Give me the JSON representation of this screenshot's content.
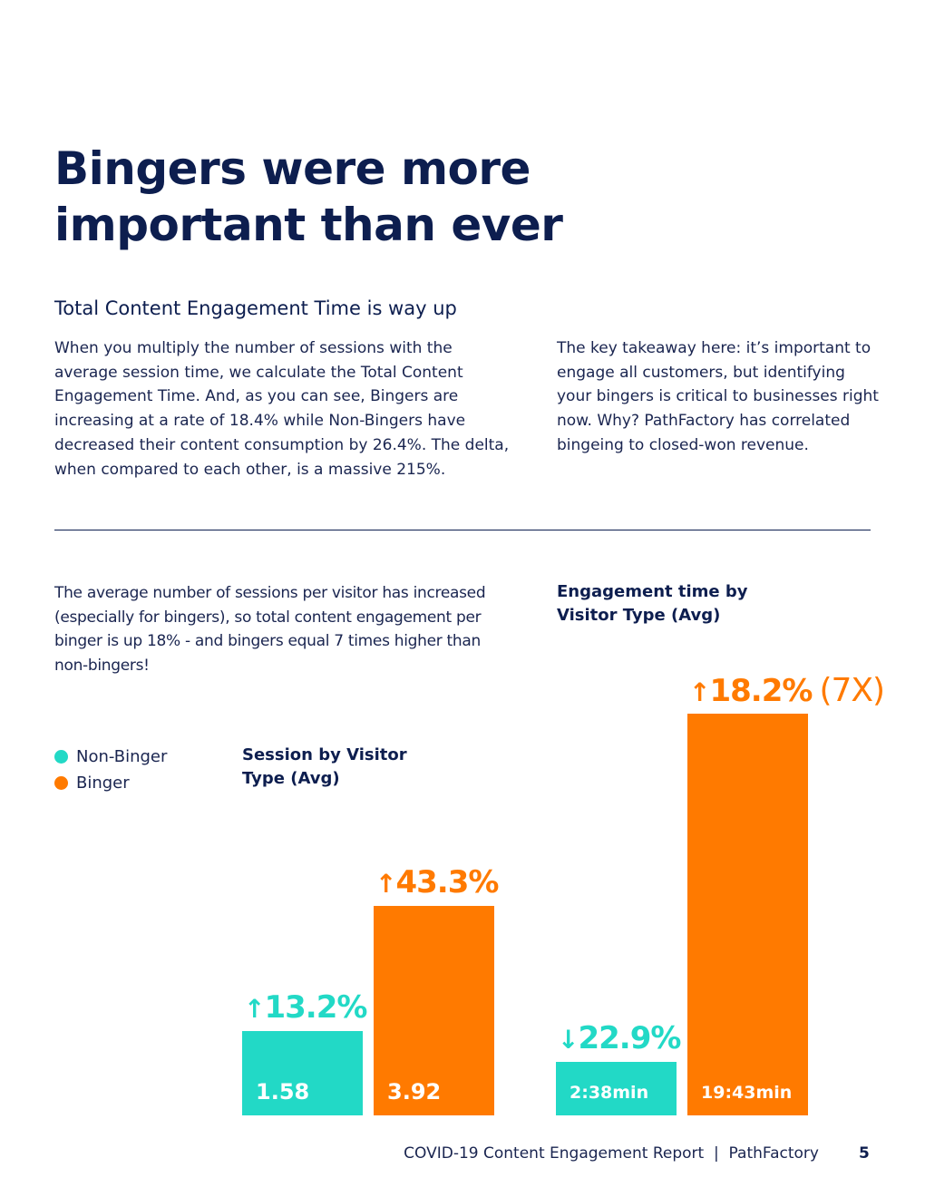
{
  "title_line1": "Bingers were more",
  "title_line2": "important than ever",
  "subtitle": "Total Content Engagement Time is way up",
  "paragraph_left": "When you multiply the number of sessions with the average session time, we calculate the Total Content Engagement Time. And, as you can see, Bingers are increasing at a rate of 18.4% while Non-Bingers have decreased their content consumption by 26.4%. The delta, when compared to each other, is a massive 215%.",
  "paragraph_right": "The key takeaway here: it’s important to engage all customers, but identifying your bingers is critical to businesses right now. Why? PathFactory has correlated bingeing to closed-won revenue.",
  "paragraph_charts": "The average number of sessions per visitor has increased (especially for bingers), so total content engagement per binger is up 18% - and bingers equal 7 times higher than non-bingers!",
  "legend": [
    {
      "label": "Non-Binger",
      "color": "#22d9c6"
    },
    {
      "label": "Binger",
      "color": "#ff7a00"
    }
  ],
  "colors": {
    "teal": "#22d9c6",
    "orange": "#ff7a00",
    "navy": "#0d1e4f"
  },
  "chart_data": [
    {
      "type": "bar",
      "title": "Session by Visitor Type (Avg)",
      "categories": [
        "Non-Binger",
        "Binger"
      ],
      "values": [
        1.58,
        3.92
      ],
      "value_labels": [
        "1.58",
        "3.92"
      ],
      "change_arrows": [
        "↑",
        "↑"
      ],
      "change_labels": [
        "13.2%",
        "43.3%"
      ],
      "ylim": [
        0,
        4.1
      ]
    },
    {
      "type": "bar",
      "title": "Engagement time by Visitor Type (Avg)",
      "categories": [
        "Non-Binger",
        "Binger"
      ],
      "values": [
        2.63,
        19.72
      ],
      "value_labels": [
        "2:38min",
        "19:43min"
      ],
      "change_arrows": [
        "↓",
        "↑"
      ],
      "change_labels": [
        "22.9%",
        "18.2%"
      ],
      "multiplier_label": "(7X)",
      "ylim": [
        0,
        19.72
      ]
    }
  ],
  "footer": "COVID-19 Content Engagement Report  |  PathFactory",
  "page_number": "5"
}
